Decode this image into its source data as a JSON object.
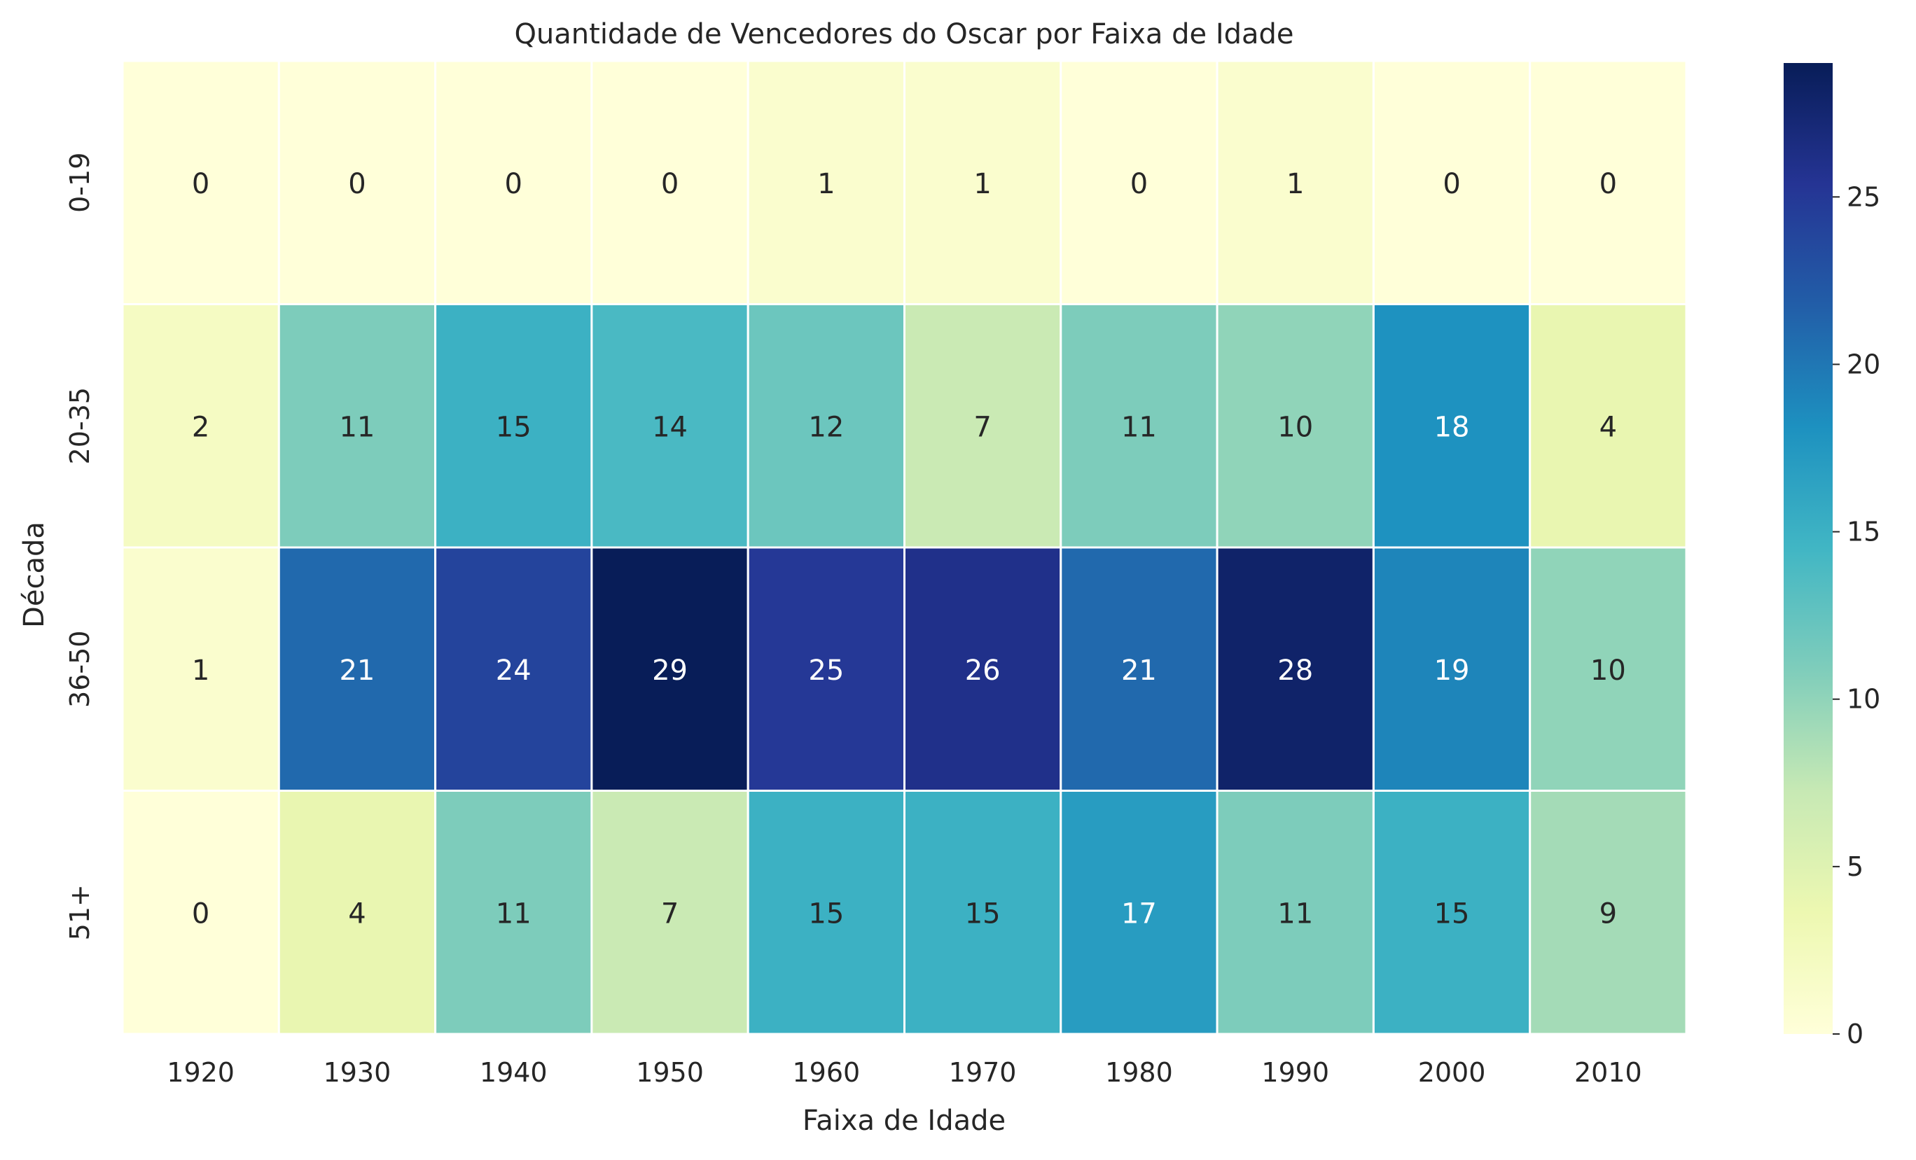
{
  "chart_data": {
    "type": "heatmap",
    "title": "Quantidade de Vencedores do Oscar por Faixa de Idade",
    "xlabel": "Faixa de Idade",
    "ylabel": "Década",
    "x_categories": [
      "1920",
      "1930",
      "1940",
      "1950",
      "1960",
      "1970",
      "1980",
      "1990",
      "2000",
      "2010"
    ],
    "y_categories": [
      "0-19",
      "20-35",
      "36-50",
      "51+"
    ],
    "values": [
      [
        0,
        0,
        0,
        0,
        1,
        1,
        0,
        1,
        0,
        0
      ],
      [
        2,
        11,
        15,
        14,
        12,
        7,
        11,
        10,
        18,
        4
      ],
      [
        1,
        21,
        24,
        29,
        25,
        26,
        21,
        28,
        19,
        10
      ],
      [
        0,
        4,
        11,
        7,
        15,
        15,
        17,
        11,
        15,
        9
      ]
    ],
    "colormap": "YlGnBu",
    "color_range": [
      0,
      29
    ],
    "colorbar_ticks": [
      "0",
      "5",
      "10",
      "15",
      "20",
      "25"
    ],
    "annotations": true,
    "grid": false
  }
}
